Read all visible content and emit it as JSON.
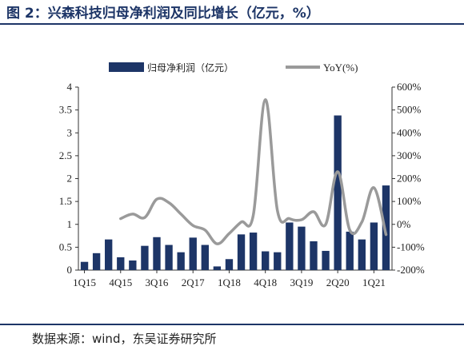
{
  "title": "图 2：兴森科技归母净利润及同比增长（亿元，%）",
  "source": "数据来源：wind，东吴证券研究所",
  "colors": {
    "bar": "#1d3567",
    "line": "#9a9a9a",
    "title": "#1d3567",
    "axis": "#333333"
  },
  "chart_data": {
    "type": "bar+line",
    "categories": [
      "1Q15",
      "2Q15",
      "3Q15",
      "4Q15",
      "1Q16",
      "2Q16",
      "3Q16",
      "4Q16",
      "1Q17",
      "2Q17",
      "3Q17",
      "4Q17",
      "1Q18",
      "2Q18",
      "3Q18",
      "4Q18",
      "1Q19",
      "2Q19",
      "3Q19",
      "4Q19",
      "1Q20",
      "2Q20",
      "3Q20",
      "4Q20",
      "1Q21",
      "2Q21"
    ],
    "x_tick_labels": [
      "1Q15",
      "4Q15",
      "3Q16",
      "2Q17",
      "1Q18",
      "4Q18",
      "3Q19",
      "2Q20",
      "1Q21"
    ],
    "legend_position": "top",
    "grid": false,
    "series": [
      {
        "name": "归母净利润（亿元）",
        "type": "bar",
        "axis": "left",
        "values": [
          0.18,
          0.37,
          0.67,
          0.28,
          0.21,
          0.53,
          0.72,
          0.55,
          0.39,
          0.71,
          0.55,
          0.08,
          0.24,
          0.78,
          0.82,
          0.41,
          0.39,
          1.04,
          0.95,
          0.63,
          0.42,
          3.38,
          0.84,
          0.67,
          1.04,
          1.85
        ]
      },
      {
        "name": "YoY(%)",
        "type": "line",
        "axis": "right",
        "values": [
          null,
          null,
          null,
          25,
          45,
          30,
          110,
          95,
          45,
          -5,
          -25,
          -85,
          -40,
          10,
          40,
          545,
          60,
          25,
          20,
          55,
          0,
          230,
          -25,
          10,
          160,
          -45
        ]
      }
    ],
    "y_left": {
      "min": 0,
      "max": 4,
      "ticks": [
        "0",
        "0.5",
        "1",
        "1.5",
        "2",
        "2.5",
        "3",
        "3.5",
        "4"
      ]
    },
    "y_right": {
      "min": -200,
      "max": 600,
      "ticks": [
        "-200%",
        "-100%",
        "0%",
        "100%",
        "200%",
        "300%",
        "400%",
        "500%",
        "600%"
      ]
    }
  }
}
